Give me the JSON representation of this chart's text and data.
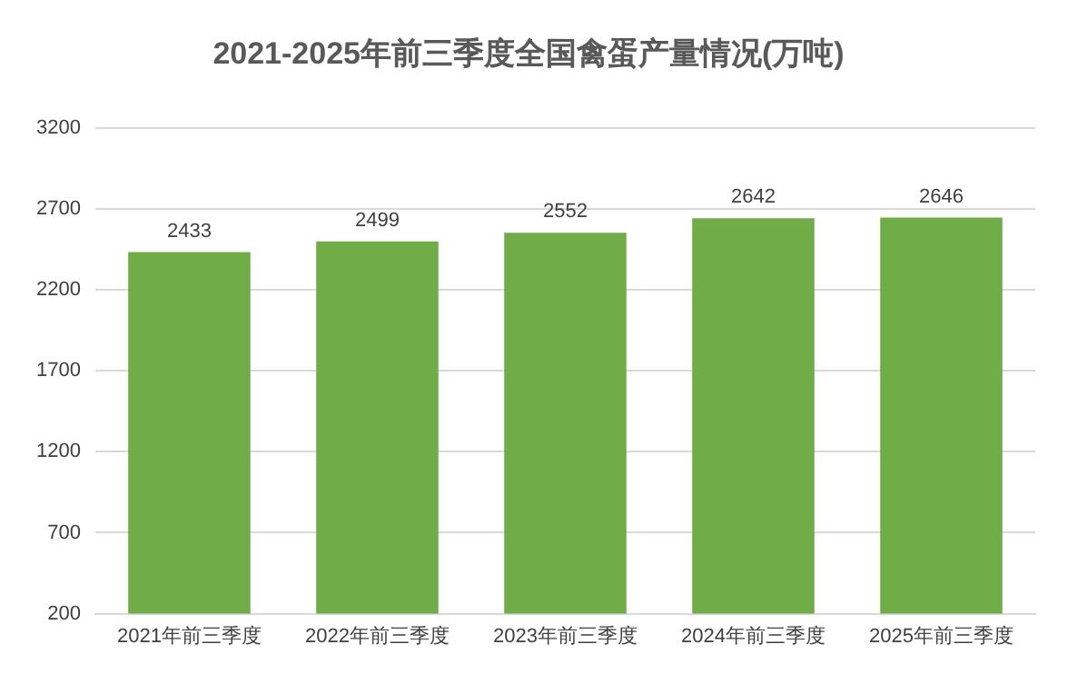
{
  "chart_data": {
    "type": "bar",
    "title": "2021-2025年前三季度全国禽蛋产量情况(万吨)",
    "categories": [
      "2021年前三季度",
      "2022年前三季度",
      "2023年前三季度",
      "2024年前三季度",
      "2025年前三季度"
    ],
    "values": [
      2433,
      2499,
      2552,
      2642,
      2646
    ],
    "color": "#70ad47",
    "ylim": [
      200,
      3200
    ],
    "yticks": [
      200,
      700,
      1200,
      1700,
      2200,
      2700,
      3200
    ],
    "grid": "y",
    "data_labels": true
  }
}
